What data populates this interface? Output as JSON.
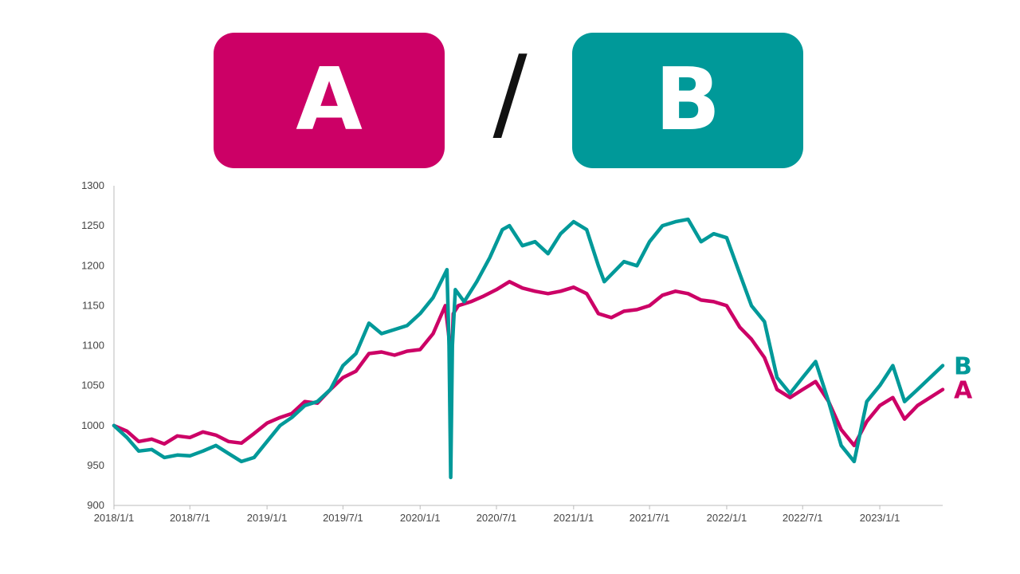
{
  "header": {
    "a_label": "A",
    "separator": "/",
    "b_label": "B"
  },
  "colors": {
    "a": "#cc0066",
    "b": "#009999",
    "axis": "#bbbbbb",
    "tick_text": "#444444"
  },
  "chart_data": {
    "type": "line",
    "title": "",
    "xlabel": "",
    "ylabel": "",
    "ylim": [
      900,
      1300
    ],
    "yticks": [
      900,
      950,
      1000,
      1050,
      1100,
      1150,
      1200,
      1250,
      1300
    ],
    "xlim": [
      "2018-01-01",
      "2023-05-31"
    ],
    "xticks": [
      {
        "date": "2018-01-01",
        "label": "2018/1/1"
      },
      {
        "date": "2018-07-01",
        "label": "2018/7/1"
      },
      {
        "date": "2019-01-01",
        "label": "2019/1/1"
      },
      {
        "date": "2019-07-01",
        "label": "2019/7/1"
      },
      {
        "date": "2020-01-01",
        "label": "2020/1/1"
      },
      {
        "date": "2020-07-01",
        "label": "2020/7/1"
      },
      {
        "date": "2021-01-01",
        "label": "2021/1/1"
      },
      {
        "date": "2021-07-01",
        "label": "2021/7/1"
      },
      {
        "date": "2022-01-01",
        "label": "2022/1/1"
      },
      {
        "date": "2022-07-01",
        "label": "2022/7/1"
      },
      {
        "date": "2023-01-01",
        "label": "2023/1/1"
      }
    ],
    "grid": false,
    "legend": "end-of-line labels",
    "series": [
      {
        "name": "A",
        "color": "#cc0066",
        "end_label": "A",
        "points": [
          [
            "2018-01-01",
            1000
          ],
          [
            "2018-02-01",
            993
          ],
          [
            "2018-03-01",
            980
          ],
          [
            "2018-04-01",
            983
          ],
          [
            "2018-05-01",
            977
          ],
          [
            "2018-06-01",
            987
          ],
          [
            "2018-07-01",
            985
          ],
          [
            "2018-08-01",
            992
          ],
          [
            "2018-09-01",
            988
          ],
          [
            "2018-10-01",
            980
          ],
          [
            "2018-11-01",
            978
          ],
          [
            "2018-12-01",
            990
          ],
          [
            "2019-01-01",
            1003
          ],
          [
            "2019-02-01",
            1010
          ],
          [
            "2019-03-01",
            1015
          ],
          [
            "2019-04-01",
            1030
          ],
          [
            "2019-05-01",
            1028
          ],
          [
            "2019-06-01",
            1045
          ],
          [
            "2019-07-01",
            1060
          ],
          [
            "2019-08-01",
            1068
          ],
          [
            "2019-09-01",
            1090
          ],
          [
            "2019-10-01",
            1092
          ],
          [
            "2019-11-01",
            1088
          ],
          [
            "2019-12-01",
            1093
          ],
          [
            "2020-01-01",
            1095
          ],
          [
            "2020-02-01",
            1115
          ],
          [
            "2020-03-01",
            1150
          ],
          [
            "2020-03-12",
            1100
          ],
          [
            "2020-03-14",
            1050
          ],
          [
            "2020-03-16",
            1080
          ],
          [
            "2020-03-20",
            1140
          ],
          [
            "2020-04-01",
            1150
          ],
          [
            "2020-05-01",
            1155
          ],
          [
            "2020-06-01",
            1162
          ],
          [
            "2020-07-01",
            1170
          ],
          [
            "2020-08-01",
            1180
          ],
          [
            "2020-09-01",
            1172
          ],
          [
            "2020-10-01",
            1168
          ],
          [
            "2020-11-01",
            1165
          ],
          [
            "2020-12-01",
            1168
          ],
          [
            "2021-01-01",
            1173
          ],
          [
            "2021-02-01",
            1165
          ],
          [
            "2021-03-01",
            1140
          ],
          [
            "2021-04-01",
            1135
          ],
          [
            "2021-05-01",
            1143
          ],
          [
            "2021-06-01",
            1145
          ],
          [
            "2021-07-01",
            1150
          ],
          [
            "2021-08-01",
            1163
          ],
          [
            "2021-09-01",
            1168
          ],
          [
            "2021-10-01",
            1165
          ],
          [
            "2021-11-01",
            1157
          ],
          [
            "2021-12-01",
            1155
          ],
          [
            "2022-01-01",
            1150
          ],
          [
            "2022-02-01",
            1123
          ],
          [
            "2022-03-01",
            1108
          ],
          [
            "2022-04-01",
            1085
          ],
          [
            "2022-05-01",
            1045
          ],
          [
            "2022-06-01",
            1035
          ],
          [
            "2022-07-01",
            1045
          ],
          [
            "2022-08-01",
            1055
          ],
          [
            "2022-09-01",
            1030
          ],
          [
            "2022-10-01",
            995
          ],
          [
            "2022-11-01",
            975
          ],
          [
            "2022-12-01",
            1005
          ],
          [
            "2023-01-01",
            1025
          ],
          [
            "2023-02-01",
            1035
          ],
          [
            "2023-03-01",
            1008
          ],
          [
            "2023-04-01",
            1025
          ],
          [
            "2023-05-31",
            1045
          ]
        ]
      },
      {
        "name": "B",
        "color": "#009999",
        "end_label": "B",
        "points": [
          [
            "2018-01-01",
            1000
          ],
          [
            "2018-02-01",
            985
          ],
          [
            "2018-03-01",
            968
          ],
          [
            "2018-04-01",
            970
          ],
          [
            "2018-05-01",
            960
          ],
          [
            "2018-06-01",
            963
          ],
          [
            "2018-07-01",
            962
          ],
          [
            "2018-08-01",
            968
          ],
          [
            "2018-09-01",
            975
          ],
          [
            "2018-10-01",
            965
          ],
          [
            "2018-11-01",
            955
          ],
          [
            "2018-12-01",
            960
          ],
          [
            "2019-01-01",
            980
          ],
          [
            "2019-02-01",
            1000
          ],
          [
            "2019-03-01",
            1010
          ],
          [
            "2019-04-01",
            1025
          ],
          [
            "2019-05-01",
            1030
          ],
          [
            "2019-06-01",
            1045
          ],
          [
            "2019-07-01",
            1075
          ],
          [
            "2019-08-01",
            1090
          ],
          [
            "2019-09-01",
            1128
          ],
          [
            "2019-10-01",
            1115
          ],
          [
            "2019-11-01",
            1120
          ],
          [
            "2019-12-01",
            1125
          ],
          [
            "2020-01-01",
            1140
          ],
          [
            "2020-02-01",
            1160
          ],
          [
            "2020-03-05",
            1195
          ],
          [
            "2020-03-10",
            1100
          ],
          [
            "2020-03-14",
            935
          ],
          [
            "2020-03-18",
            1100
          ],
          [
            "2020-03-25",
            1170
          ],
          [
            "2020-04-15",
            1155
          ],
          [
            "2020-05-15",
            1180
          ],
          [
            "2020-06-15",
            1210
          ],
          [
            "2020-07-15",
            1245
          ],
          [
            "2020-08-01",
            1250
          ],
          [
            "2020-09-01",
            1225
          ],
          [
            "2020-10-01",
            1230
          ],
          [
            "2020-11-01",
            1215
          ],
          [
            "2020-12-01",
            1240
          ],
          [
            "2021-01-01",
            1255
          ],
          [
            "2021-02-01",
            1245
          ],
          [
            "2021-03-01",
            1200
          ],
          [
            "2021-03-15",
            1180
          ],
          [
            "2021-05-01",
            1205
          ],
          [
            "2021-06-01",
            1200
          ],
          [
            "2021-07-01",
            1230
          ],
          [
            "2021-08-01",
            1250
          ],
          [
            "2021-09-01",
            1255
          ],
          [
            "2021-10-01",
            1258
          ],
          [
            "2021-11-01",
            1230
          ],
          [
            "2021-12-01",
            1240
          ],
          [
            "2022-01-01",
            1235
          ],
          [
            "2022-02-01",
            1190
          ],
          [
            "2022-03-01",
            1150
          ],
          [
            "2022-04-01",
            1130
          ],
          [
            "2022-05-01",
            1060
          ],
          [
            "2022-06-01",
            1040
          ],
          [
            "2022-07-01",
            1060
          ],
          [
            "2022-08-01",
            1080
          ],
          [
            "2022-09-01",
            1030
          ],
          [
            "2022-10-01",
            975
          ],
          [
            "2022-11-01",
            955
          ],
          [
            "2022-12-01",
            1030
          ],
          [
            "2023-01-01",
            1050
          ],
          [
            "2023-02-01",
            1075
          ],
          [
            "2023-03-01",
            1030
          ],
          [
            "2023-04-01",
            1045
          ],
          [
            "2023-05-31",
            1075
          ]
        ]
      }
    ]
  }
}
